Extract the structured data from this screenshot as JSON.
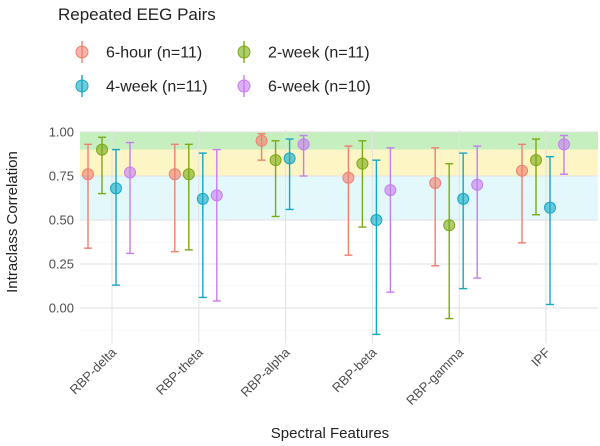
{
  "chart_data": {
    "type": "scatter",
    "subtype": "point-with-error-bars",
    "legend_title": "Repeated EEG Pairs",
    "legend_position": "top-left",
    "xlabel": "Spectral Features",
    "ylabel": "Intraclass Correlation",
    "ylim": [
      -0.2,
      1.0
    ],
    "yticks": [
      "0.00",
      "0.25",
      "0.50",
      "0.75",
      "1.00"
    ],
    "ytick_values": [
      0,
      0.25,
      0.5,
      0.75,
      1.0
    ],
    "grid": true,
    "bands": [
      {
        "from": 0.9,
        "to": 1.0,
        "color": "#c6efbf"
      },
      {
        "from": 0.75,
        "to": 0.9,
        "color": "#fdf5c4"
      },
      {
        "from": 0.5,
        "to": 0.75,
        "color": "#e3f8fb"
      }
    ],
    "categories": [
      "RBP-delta",
      "RBP-theta",
      "RBP-alpha",
      "RBP-beta",
      "RBP-gamma",
      "IPF"
    ],
    "series": [
      {
        "name": "6-hour (n=11)",
        "color": "#f08070",
        "values": [
          0.76,
          0.76,
          0.95,
          0.74,
          0.71,
          0.78
        ],
        "lower": [
          0.34,
          0.32,
          0.84,
          0.3,
          0.24,
          0.37
        ],
        "upper": [
          0.93,
          0.93,
          0.99,
          0.92,
          0.91,
          0.93
        ]
      },
      {
        "name": "2-week (n=11)",
        "color": "#7caa14",
        "values": [
          0.9,
          0.76,
          0.84,
          0.82,
          0.47,
          0.84
        ],
        "lower": [
          0.65,
          0.33,
          0.52,
          0.46,
          -0.06,
          0.53
        ],
        "upper": [
          0.97,
          0.93,
          0.95,
          0.95,
          0.82,
          0.96
        ]
      },
      {
        "name": "4-week (n=11)",
        "color": "#13a9c4",
        "values": [
          0.68,
          0.62,
          0.85,
          0.5,
          0.62,
          0.57
        ],
        "lower": [
          0.13,
          0.06,
          0.56,
          -0.15,
          0.11,
          0.02
        ],
        "upper": [
          0.9,
          0.88,
          0.96,
          0.84,
          0.88,
          0.86
        ]
      },
      {
        "name": "6-week (n=10)",
        "color": "#c77cf0",
        "values": [
          0.77,
          0.64,
          0.93,
          0.67,
          0.7,
          0.93
        ],
        "lower": [
          0.31,
          0.04,
          0.75,
          0.09,
          0.17,
          0.76
        ],
        "upper": [
          0.94,
          0.9,
          0.98,
          0.91,
          0.92,
          0.98
        ]
      }
    ]
  }
}
